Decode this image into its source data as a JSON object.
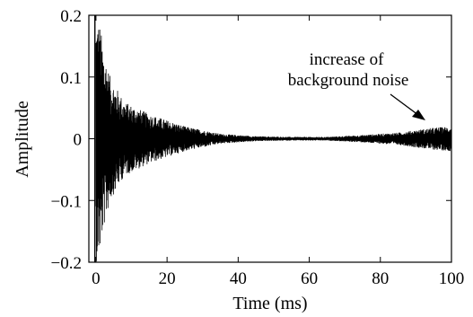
{
  "chart_data": {
    "type": "line",
    "title": "",
    "xlabel": "Time (ms)",
    "ylabel": "Amplitude",
    "xlim": [
      -2,
      100
    ],
    "ylim": [
      -0.2,
      0.2
    ],
    "x_ticks": [
      0,
      20,
      40,
      60,
      80,
      100
    ],
    "y_ticks": [
      -0.2,
      -0.1,
      0,
      0.1,
      0.2
    ],
    "x_tick_labels": [
      "0",
      "20",
      "40",
      "60",
      "80",
      "100"
    ],
    "y_tick_labels": [
      "−0.2",
      "−0.1",
      "0",
      "0.1",
      "0.2"
    ],
    "grid": false,
    "series": [
      {
        "color": "#000000",
        "description_points": {
          "time_ms": [
            0,
            1,
            2,
            4,
            8,
            15,
            25,
            35,
            45,
            55,
            65,
            75,
            85,
            95,
            100
          ],
          "envelope_amplitude": [
            0.2,
            0.19,
            0.15,
            0.1,
            0.06,
            0.04,
            0.02,
            0.008,
            0.004,
            0.003,
            0.003,
            0.006,
            0.01,
            0.018,
            0.02
          ]
        }
      }
    ],
    "annotations": [
      {
        "text_lines": [
          "increase of",
          "background noise"
        ],
        "arrow_to": [
          94,
          0.01
        ]
      }
    ]
  }
}
